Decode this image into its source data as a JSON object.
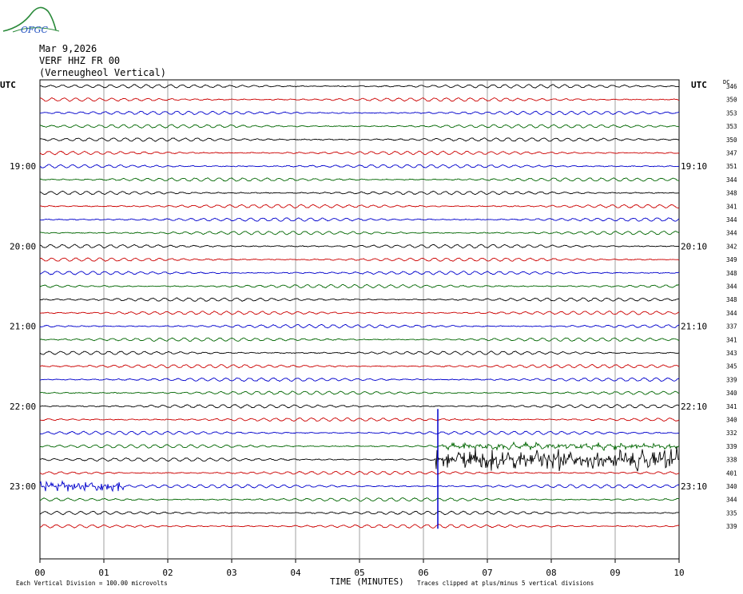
{
  "logo": {
    "text": "OFGC",
    "icon": "mountain-logo-icon",
    "colors": [
      "#2a8a3a",
      "#2050c0"
    ]
  },
  "header": {
    "date": "Mar 9,2026",
    "station": "VERF HHZ FR 00",
    "location": "(Verneugheol Vertical)"
  },
  "left_axis_title": "UTC",
  "right_axis_title": "UTC",
  "dc_label": "DC",
  "footer": {
    "left_note": "Each Vertical Division =  100.00 microvolts",
    "right_note": "Traces clipped at plus/minus 5 vertical divisions"
  },
  "chart_data": {
    "type": "line",
    "title": "",
    "xlabel": "TIME (MINUTES)",
    "ylabel": "",
    "x_ticks": [
      "00",
      "01",
      "02",
      "03",
      "04",
      "05",
      "06",
      "07",
      "08",
      "09",
      "10"
    ],
    "xlim": [
      0,
      10
    ],
    "grid": true,
    "trace_colors": [
      "#000000",
      "#cc0000",
      "#0000cc",
      "#006600"
    ],
    "left_time_labels": [
      {
        "row": 6,
        "text": "19:00"
      },
      {
        "row": 12,
        "text": "20:00"
      },
      {
        "row": 18,
        "text": "21:00"
      },
      {
        "row": 24,
        "text": "22:00"
      },
      {
        "row": 30,
        "text": "23:00"
      }
    ],
    "right_time_labels": [
      {
        "row": 6,
        "text": "19:10"
      },
      {
        "row": 12,
        "text": "20:10"
      },
      {
        "row": 18,
        "text": "21:10"
      },
      {
        "row": 24,
        "text": "22:10"
      },
      {
        "row": 30,
        "text": "23:10"
      }
    ],
    "dc_offsets": [
      "346",
      "350",
      "353",
      "353",
      "350",
      "347",
      "351",
      "344",
      "348",
      "341",
      "344",
      "344",
      "342",
      "349",
      "348",
      "344",
      "348",
      "344",
      "337",
      "341",
      "343",
      "345",
      "339",
      "340",
      "341",
      "340",
      "332",
      "339",
      "338",
      "401",
      "340",
      "344",
      "335",
      "339"
    ],
    "events": [
      {
        "row": 30,
        "x_start": 0.0,
        "x_end": 1.3,
        "amplitude_div": 2.2
      },
      {
        "row": 28,
        "x_start": 6.2,
        "x_end": 10.0,
        "amplitude_div": 5
      },
      {
        "row": 27,
        "x_start": 6.3,
        "x_end": 10.0,
        "amplitude_div": 1.2
      }
    ]
  }
}
